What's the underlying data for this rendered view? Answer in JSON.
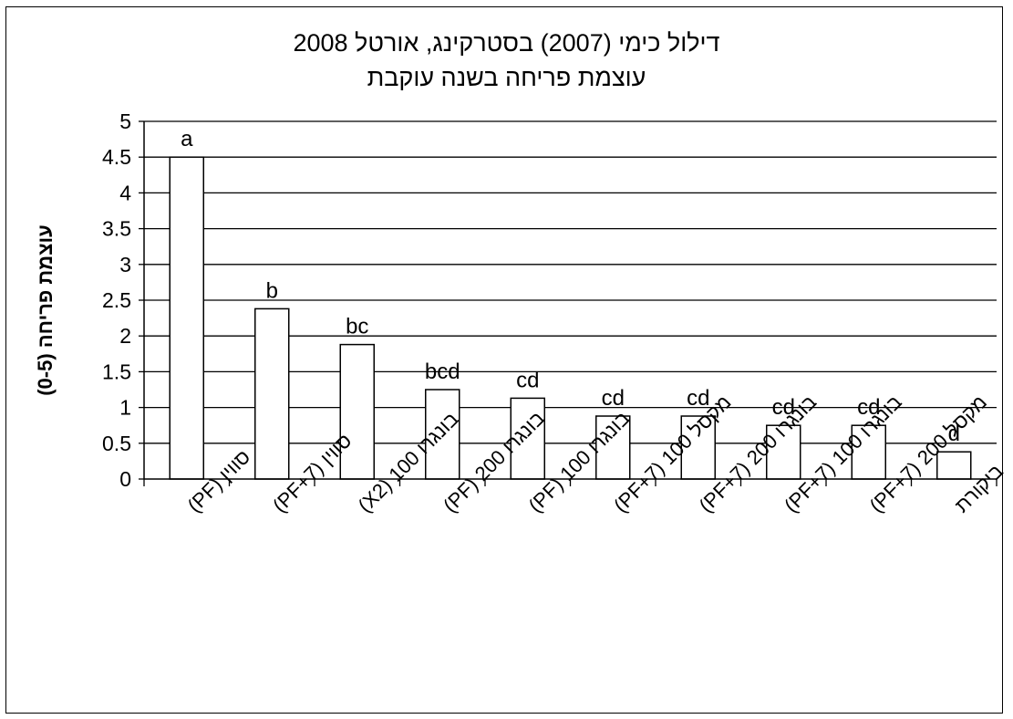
{
  "chart_data": {
    "type": "bar",
    "title": "דילול כימי (2007) בסטרקינג, אורטל 2008",
    "subtitle": "עוצמת פריחה בשנה עוקבת",
    "xlabel": "",
    "ylabel": "עוצמת פריחה (0-5)",
    "ylim": [
      0,
      5
    ],
    "yticks": [
      "0",
      "0.5",
      "1",
      "1.5",
      "2",
      "2.5",
      "3",
      "3.5",
      "4",
      "4.5",
      "5"
    ],
    "grid": true,
    "categories": [
      "סווין (PF)",
      "סווין (PF+7)",
      "בונגרו 100 (X2)",
      "בונגרו 200 (PF)",
      "בונגרו 100 (PF)",
      "מקסל 100 (PF+7)",
      "בונגרו 200 (PF+7)",
      "בונגרו 100 (PF+7)",
      "מקסל 200 (PF+7)",
      "ביקורת"
    ],
    "values": [
      4.5,
      2.38,
      1.88,
      1.25,
      1.13,
      0.88,
      0.88,
      0.75,
      0.75,
      0.38
    ],
    "data_labels": [
      "a",
      "b",
      "bc",
      "bcd",
      "cd",
      "cd",
      "cd",
      "cd",
      "cd",
      "d"
    ],
    "colors": {
      "bar_fill": "#ffffff",
      "bar_stroke": "#000000",
      "grid": "#000000"
    }
  }
}
